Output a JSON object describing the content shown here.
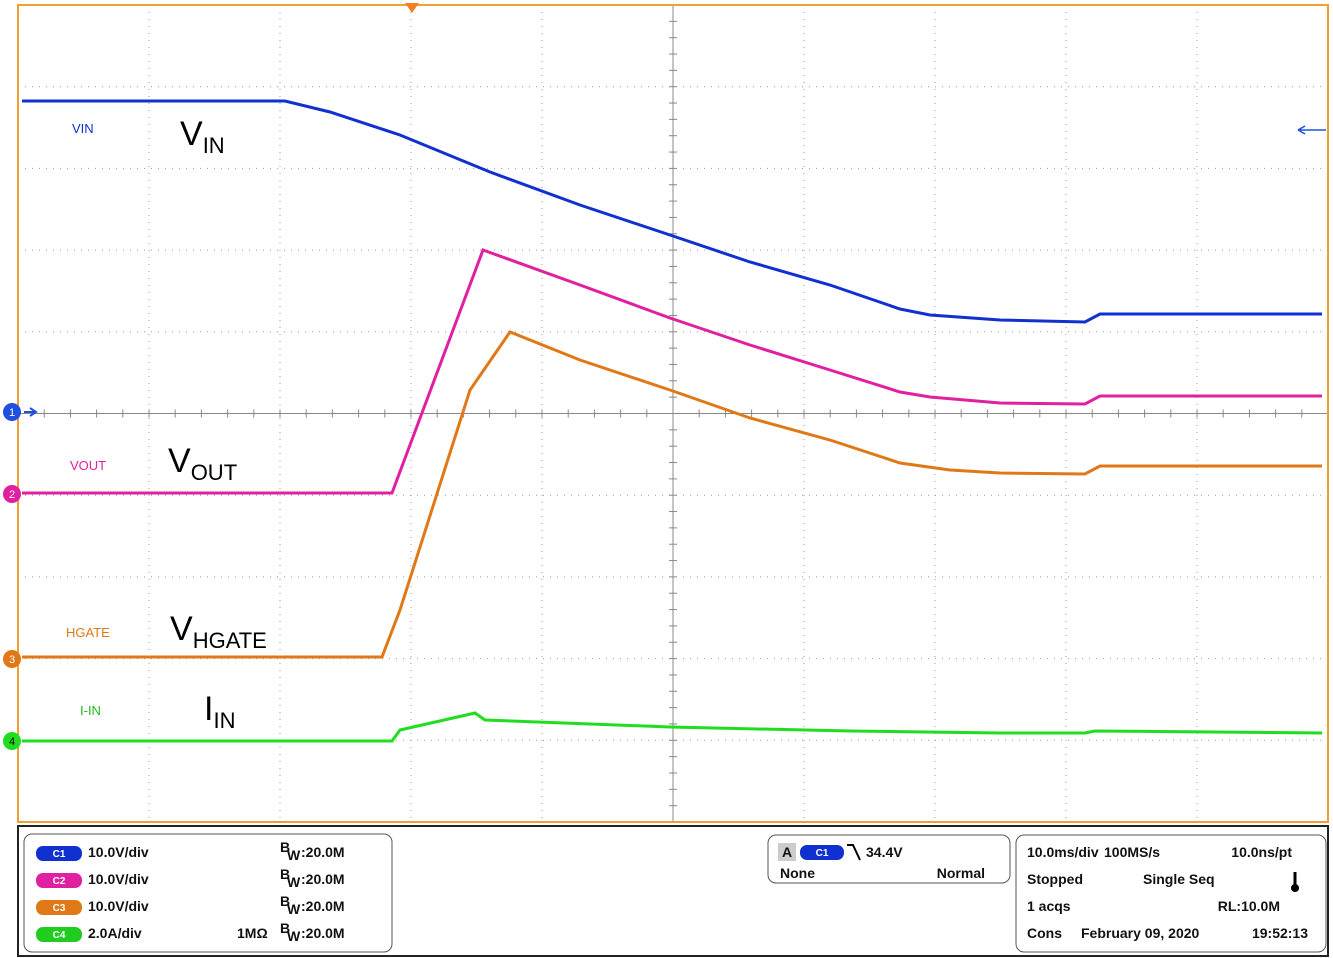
{
  "traces": [
    {
      "short": "VIN",
      "main": "V",
      "sub": "IN"
    },
    {
      "short": "VOUT",
      "main": "V",
      "sub": "OUT"
    },
    {
      "short": "HGATE",
      "main": "V",
      "sub": "HGATE"
    },
    {
      "short": "I-IN",
      "main": "I",
      "sub": "IN"
    }
  ],
  "markers": [
    "1",
    "2",
    "3",
    "4"
  ],
  "channels": [
    {
      "badge": "C1",
      "scale": "10.0V/div",
      "bw_b": "B",
      "bw_w": "W",
      "bw_value": ":20.0M"
    },
    {
      "badge": "C2",
      "scale": "10.0V/div",
      "bw_b": "B",
      "bw_w": "W",
      "bw_value": ":20.0M"
    },
    {
      "badge": "C3",
      "scale": "10.0V/div",
      "bw_b": "B",
      "bw_w": "W",
      "bw_value": ":20.0M"
    },
    {
      "badge": "C4",
      "scale": "2.0A/div",
      "impedance": "1MΩ",
      "bw_b": "B",
      "bw_w": "W",
      "bw_value": ":20.0M"
    }
  ],
  "trigger": {
    "mode_badge": "A",
    "source": "C1",
    "level": "34.4V",
    "coupling": "None",
    "sweep": "Normal"
  },
  "acquisition": {
    "timebase": "10.0ms/div",
    "sample_rate": "100MS/s",
    "resolution": "10.0ns/pt",
    "state": "Stopped",
    "sequence": "Single Seq",
    "acqs": "1 acqs",
    "record_length": "RL:10.0M",
    "cons": "Cons",
    "date": "February 09, 2020",
    "time": "19:52:13"
  }
}
